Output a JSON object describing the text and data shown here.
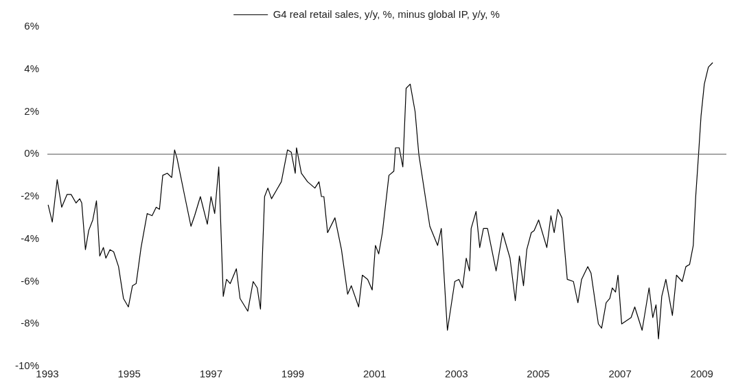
{
  "chart_data": {
    "type": "line",
    "legend": "top",
    "grid": false,
    "ref_lines": [
      {
        "axis": "y",
        "value": 0,
        "color": "#555555"
      }
    ],
    "marker": "none",
    "line_style": "solid",
    "xlim": [
      1993,
      2009.6
    ],
    "xticks": [
      1993,
      1995,
      1997,
      1999,
      2001,
      2003,
      2005,
      2007,
      2009
    ],
    "ylim": [
      -10,
      6
    ],
    "yticks": [
      {
        "value": -10,
        "label": "-10%"
      },
      {
        "value": -8,
        "label": "-8%"
      },
      {
        "value": -6,
        "label": "-6%"
      },
      {
        "value": -4,
        "label": "-4%"
      },
      {
        "value": -2,
        "label": "-2%"
      },
      {
        "value": 0,
        "label": "0%"
      },
      {
        "value": 2,
        "label": "2%"
      },
      {
        "value": 4,
        "label": "4%"
      },
      {
        "value": 6,
        "label": "6%"
      }
    ],
    "series": [
      {
        "name": "G4 real retail sales, y/y, %, minus global IP, y/y, %",
        "color": "#000000",
        "x": [
          1993.02,
          1993.12,
          1993.24,
          1993.35,
          1993.48,
          1993.58,
          1993.7,
          1993.79,
          1993.84,
          1993.93,
          1994.01,
          1994.11,
          1994.2,
          1994.28,
          1994.37,
          1994.43,
          1994.53,
          1994.62,
          1994.74,
          1994.86,
          1994.98,
          1995.08,
          1995.17,
          1995.29,
          1995.44,
          1995.56,
          1995.66,
          1995.74,
          1995.82,
          1995.93,
          1996.04,
          1996.11,
          1996.17,
          1996.36,
          1996.51,
          1996.6,
          1996.74,
          1996.91,
          1997.0,
          1997.09,
          1997.19,
          1997.3,
          1997.38,
          1997.47,
          1997.62,
          1997.71,
          1997.9,
          1998.03,
          1998.13,
          1998.21,
          1998.31,
          1998.39,
          1998.48,
          1998.6,
          1998.72,
          1998.87,
          1998.96,
          1999.06,
          1999.09,
          1999.21,
          1999.36,
          1999.54,
          1999.64,
          1999.7,
          1999.76,
          1999.85,
          2000.03,
          2000.19,
          2000.34,
          2000.43,
          2000.61,
          2000.7,
          2000.83,
          2000.94,
          2001.02,
          2001.1,
          2001.19,
          2001.35,
          2001.47,
          2001.51,
          2001.6,
          2001.69,
          2001.77,
          2001.87,
          2001.99,
          2002.08,
          2002.35,
          2002.54,
          2002.63,
          2002.75,
          2002.78,
          2002.96,
          2003.06,
          2003.15,
          2003.24,
          2003.32,
          2003.36,
          2003.48,
          2003.57,
          2003.66,
          2003.76,
          2003.97,
          2004.13,
          2004.31,
          2004.44,
          2004.54,
          2004.64,
          2004.72,
          2004.83,
          2004.9,
          2005.01,
          2005.21,
          2005.31,
          2005.39,
          2005.48,
          2005.58,
          2005.71,
          2005.86,
          2005.97,
          2006.06,
          2006.21,
          2006.29,
          2006.47,
          2006.55,
          2006.66,
          2006.75,
          2006.81,
          2006.89,
          2006.95,
          2007.04,
          2007.27,
          2007.36,
          2007.54,
          2007.71,
          2007.8,
          2007.88,
          2007.94,
          2008.02,
          2008.12,
          2008.28,
          2008.38,
          2008.52,
          2008.61,
          2008.7,
          2008.79,
          2008.85,
          2008.92,
          2008.98,
          2009.06,
          2009.16,
          2009.26
        ],
        "values": [
          -2.4,
          -3.2,
          -1.2,
          -2.5,
          -1.9,
          -1.9,
          -2.3,
          -2.1,
          -2.3,
          -4.5,
          -3.6,
          -3.1,
          -2.2,
          -4.8,
          -4.4,
          -4.9,
          -4.5,
          -4.6,
          -5.3,
          -6.8,
          -7.2,
          -6.2,
          -6.1,
          -4.4,
          -2.8,
          -2.9,
          -2.5,
          -2.6,
          -1.0,
          -0.9,
          -1.1,
          0.2,
          -0.2,
          -2.0,
          -3.4,
          -2.9,
          -2.0,
          -3.3,
          -2.0,
          -2.8,
          -0.6,
          -6.7,
          -5.9,
          -6.1,
          -5.4,
          -6.8,
          -7.4,
          -6.0,
          -6.3,
          -7.3,
          -2.0,
          -1.6,
          -2.1,
          -1.7,
          -1.3,
          0.2,
          0.1,
          -0.9,
          0.3,
          -0.9,
          -1.3,
          -1.6,
          -1.3,
          -2.0,
          -2.0,
          -3.7,
          -3.0,
          -4.5,
          -6.6,
          -6.2,
          -7.2,
          -5.7,
          -5.9,
          -6.4,
          -4.3,
          -4.7,
          -3.7,
          -1.0,
          -0.8,
          0.3,
          0.3,
          -0.6,
          3.1,
          3.3,
          2.0,
          0.0,
          -3.4,
          -4.3,
          -3.5,
          -7.4,
          -8.3,
          -6.0,
          -5.9,
          -6.3,
          -4.9,
          -5.5,
          -3.5,
          -2.7,
          -4.4,
          -3.5,
          -3.5,
          -5.5,
          -3.7,
          -4.9,
          -6.9,
          -4.8,
          -6.2,
          -4.5,
          -3.7,
          -3.6,
          -3.1,
          -4.4,
          -2.9,
          -3.7,
          -2.6,
          -3.0,
          -5.9,
          -6.0,
          -7.0,
          -5.9,
          -5.3,
          -5.6,
          -8.0,
          -8.2,
          -7.0,
          -6.8,
          -6.3,
          -6.5,
          -5.7,
          -8.0,
          -7.7,
          -7.2,
          -8.3,
          -6.3,
          -7.7,
          -7.1,
          -8.7,
          -6.7,
          -5.9,
          -7.6,
          -5.7,
          -6.0,
          -5.3,
          -5.2,
          -4.3,
          -2.0,
          0.0,
          1.8,
          3.3,
          4.1,
          4.3
        ]
      }
    ]
  }
}
